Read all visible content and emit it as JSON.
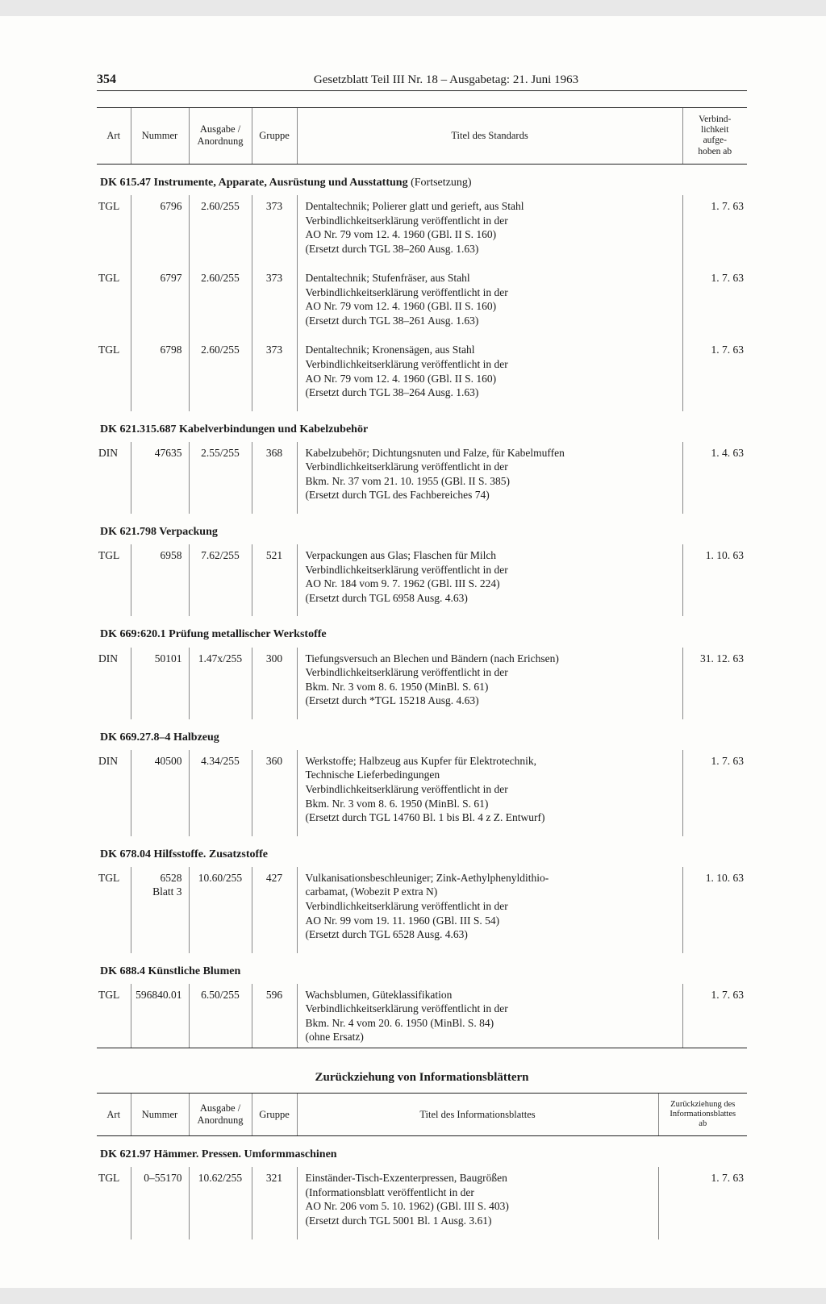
{
  "page_number": "354",
  "header_title": "Gesetzblatt Teil III Nr. 18 – Ausgabetag: 21. Juni 1963",
  "table1": {
    "headers": {
      "art": "Art",
      "nummer": "Nummer",
      "ausgabe": "Ausgabe /\nAnordnung",
      "gruppe": "Gruppe",
      "titel": "Titel des Standards",
      "verbind": "Verbind-\nlichkeit\naufge-\nhoben ab"
    },
    "sections": [
      {
        "heading": "DK 615.47 Instrumente, Apparate, Ausrüstung und Ausstattung",
        "cont": " (Fortsetzung)",
        "rows": [
          {
            "art": "TGL",
            "num": "6796",
            "ausg": "2.60/255",
            "grp": "373",
            "titel": "Dentaltechnik; Polierer glatt und gerieft, aus Stahl\nVerbindlichkeitserklärung veröffentlicht in der\nAO Nr. 79 vom 12. 4. 1960 (GBl. II S. 160)\n(Ersetzt durch TGL 38–260 Ausg. 1.63)",
            "verb": "1.  7. 63"
          },
          {
            "art": "TGL",
            "num": "6797",
            "ausg": "2.60/255",
            "grp": "373",
            "titel": "Dentaltechnik; Stufenfräser, aus Stahl\nVerbindlichkeitserklärung veröffentlicht in der\nAO Nr. 79 vom 12. 4. 1960 (GBl. II S. 160)\n(Ersetzt durch TGL 38–261 Ausg. 1.63)",
            "verb": "1.  7. 63"
          },
          {
            "art": "TGL",
            "num": "6798",
            "ausg": "2.60/255",
            "grp": "373",
            "titel": "Dentaltechnik; Kronensägen, aus Stahl\nVerbindlichkeitserklärung veröffentlicht in der\nAO Nr. 79 vom 12. 4. 1960 (GBl. II S. 160)\n(Ersetzt durch TGL 38–264 Ausg. 1.63)",
            "verb": "1.  7. 63"
          }
        ]
      },
      {
        "heading": "DK 621.315.687 Kabelverbindungen und Kabelzubehör",
        "cont": "",
        "rows": [
          {
            "art": "DIN",
            "num": "47635",
            "ausg": "2.55/255",
            "grp": "368",
            "titel": "Kabelzubehör; Dichtungsnuten und Falze, für Kabelmuffen\nVerbindlichkeitserklärung veröffentlicht in der\nBkm. Nr. 37 vom 21. 10. 1955 (GBl. II S. 385)\n(Ersetzt durch TGL des Fachbereiches 74)",
            "verb": "1.  4. 63"
          }
        ]
      },
      {
        "heading": "DK 621.798 Verpackung",
        "cont": "",
        "rows": [
          {
            "art": "TGL",
            "num": "6958",
            "ausg": "7.62/255",
            "grp": "521",
            "titel": "Verpackungen aus Glas; Flaschen für Milch\nVerbindlichkeitserklärung veröffentlicht in der\nAO Nr. 184 vom 9. 7. 1962 (GBl. III S. 224)\n(Ersetzt durch TGL 6958 Ausg. 4.63)",
            "verb": "1. 10. 63"
          }
        ]
      },
      {
        "heading": "DK 669:620.1 Prüfung metallischer Werkstoffe",
        "cont": "",
        "rows": [
          {
            "art": "DIN",
            "num": "50101",
            "ausg": "1.47x/255",
            "grp": "300",
            "titel": "Tiefungsversuch an Blechen und Bändern (nach Erichsen)\nVerbindlichkeitserklärung veröffentlicht in der\nBkm. Nr. 3 vom 8. 6. 1950 (MinBl. S. 61)\n(Ersetzt durch *TGL 15218 Ausg. 4.63)",
            "verb": "31. 12. 63"
          }
        ]
      },
      {
        "heading": "DK 669.27.8–4 Halbzeug",
        "cont": "",
        "rows": [
          {
            "art": "DIN",
            "num": "40500",
            "ausg": "4.34/255",
            "grp": "360",
            "titel": "Werkstoffe; Halbzeug aus Kupfer für Elektrotechnik,\nTechnische Lieferbedingungen\nVerbindlichkeitserklärung veröffentlicht in der\nBkm. Nr. 3 vom 8. 6. 1950 (MinBl. S. 61)\n(Ersetzt durch TGL 14760 Bl. 1 bis Bl. 4 z Z. Entwurf)",
            "verb": "1.  7. 63"
          }
        ]
      },
      {
        "heading": "DK 678.04 Hilfsstoffe. Zusatzstoffe",
        "cont": "",
        "rows": [
          {
            "art": "TGL",
            "num": "6528\nBlatt 3",
            "ausg": "10.60/255",
            "grp": "427",
            "titel": "Vulkanisationsbeschleuniger; Zink-Aethylphenyldithio-\ncarbamat, (Wobezit P extra N)\nVerbindlichkeitserklärung veröffentlicht in der\nAO Nr. 99 vom 19. 11. 1960 (GBl. III S. 54)\n(Ersetzt durch TGL 6528 Ausg. 4.63)",
            "verb": "1. 10. 63"
          }
        ]
      },
      {
        "heading": "DK 688.4 Künstliche Blumen",
        "cont": "",
        "rows": [
          {
            "art": "TGL",
            "num": "596840.01",
            "ausg": "6.50/255",
            "grp": "596",
            "titel": "Wachsblumen, Güteklassifikation\nVerbindlichkeitserklärung veröffentlicht in der\nBkm. Nr. 4 vom 20. 6. 1950 (MinBl. S. 84)\n(ohne Ersatz)",
            "verb": "1.  7. 63"
          }
        ]
      }
    ]
  },
  "subtitle": "Zurückziehung von Informationsblättern",
  "table2": {
    "headers": {
      "art": "Art",
      "nummer": "Nummer",
      "ausgabe": "Ausgabe /\nAnordnung",
      "gruppe": "Gruppe",
      "titel": "Titel des Informationsblattes",
      "verbind": "Zurückziehung des\nInformationsblattes\nab"
    },
    "sections": [
      {
        "heading": "DK 621.97 Hämmer. Pressen. Umformmaschinen",
        "cont": "",
        "rows": [
          {
            "art": "TGL",
            "num": "0–55170",
            "ausg": "10.62/255",
            "grp": "321",
            "titel": "Einständer-Tisch-Exzenterpressen, Baugrößen\n(Informationsblatt veröffentlicht in der\nAO Nr. 206 vom 5. 10. 1962) (GBl. III S. 403)\n(Ersetzt durch TGL 5001 Bl. 1 Ausg. 3.61)",
            "verb": "1. 7. 63"
          }
        ]
      }
    ]
  }
}
